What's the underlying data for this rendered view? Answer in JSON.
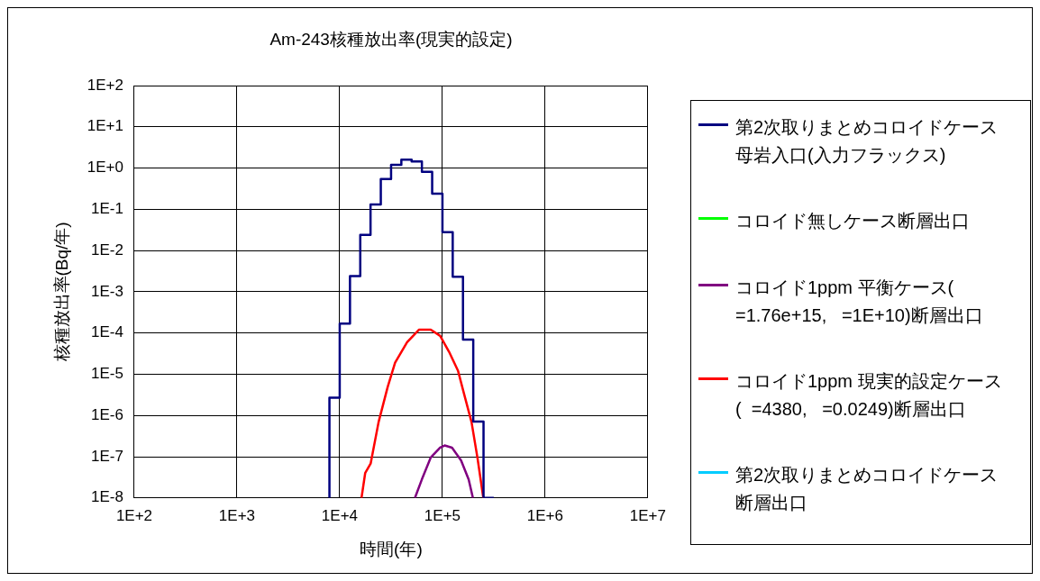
{
  "chart_data": {
    "type": "line",
    "title": "Am-243核種放出率(現実的設定)",
    "xlabel": "時間(年)",
    "ylabel": "核種放出率(Bq/年)",
    "log": "xy",
    "grid": true,
    "legend": "right",
    "marker": "none",
    "line_style": "solid",
    "xlim": [
      100,
      10000000
    ],
    "xticks": [
      {
        "value": 100,
        "label": "1E+2"
      },
      {
        "value": 1000,
        "label": "1E+3"
      },
      {
        "value": 10000,
        "label": "1E+4"
      },
      {
        "value": 100000,
        "label": "1E+5"
      },
      {
        "value": 1000000,
        "label": "1E+6"
      },
      {
        "value": 10000000,
        "label": "1E+7"
      }
    ],
    "ylim": [
      1e-08,
      100
    ],
    "yticks": [
      {
        "value": 1e-08,
        "label": "1E-8"
      },
      {
        "value": 1e-07,
        "label": "1E-7"
      },
      {
        "value": 1e-06,
        "label": "1E-6"
      },
      {
        "value": 1e-05,
        "label": "1E-5"
      },
      {
        "value": 0.0001,
        "label": "1E-4"
      },
      {
        "value": 0.001,
        "label": "1E-3"
      },
      {
        "value": 0.01,
        "label": "1E-2"
      },
      {
        "value": 0.1,
        "label": "1E-1"
      },
      {
        "value": 1,
        "label": "1E+0"
      },
      {
        "value": 10,
        "label": "1E+1"
      },
      {
        "value": 100,
        "label": "1E+2"
      }
    ],
    "series": [
      {
        "name": "第2次取りまとめコロイドケース母岩入口(入力フラックス)",
        "color": "#000080",
        "type": "step",
        "x": [
          7943,
          7943,
          10000,
          12589,
          15849,
          19953,
          25119,
          31623,
          39811,
          50119,
          63096,
          79433,
          100000,
          125893,
          158489,
          199526,
          251189,
          316228
        ],
        "values": [
          1e-08,
          3.8e-08,
          2.7e-06,
          0.00017,
          0.0024,
          0.024,
          0.13,
          0.54,
          1.2,
          1.6,
          1.45,
          0.81,
          0.24,
          0.028,
          0.0023,
          6.9e-05,
          7.1e-07,
          1e-08
        ]
      },
      {
        "name": "コロイド無しケース断層出口",
        "color": "#00ff00",
        "type": "line"
      },
      {
        "name": "コロイド1ppm 平衡ケース(  =1.76e+15,   =1E+10)断層出口",
        "color": "#800080",
        "type": "line",
        "x": [
          54000,
          63000,
          77000,
          95000,
          105000,
          124000,
          152000,
          180000,
          198000
        ],
        "values": [
          1e-08,
          2.8e-08,
          9.6e-08,
          1.66e-07,
          1.87e-07,
          1.66e-07,
          8.1e-08,
          2.8e-08,
          1e-08
        ]
      },
      {
        "name": "コロイド1ppm 現実的設定ケース(  =4380,   =0.0249)断層出口",
        "color": "#ff0000",
        "type": "line",
        "x": [
          16300,
          17700,
          20000,
          23900,
          29300,
          34600,
          45300,
          59000,
          77000,
          95000,
          116000,
          142000,
          162000,
          192000,
          219000,
          250000
        ],
        "values": [
          1e-08,
          4e-08,
          6.8e-08,
          6.9e-07,
          4.9e-06,
          1.9e-05,
          6e-05,
          0.00012,
          0.00012,
          8.5e-05,
          3.5e-05,
          1.2e-05,
          3.4e-06,
          6.9e-07,
          9.6e-08,
          1e-08
        ]
      },
      {
        "name": "第2次取りまとめコロイドケース断層出口",
        "color": "#00ccff",
        "type": "line"
      }
    ]
  }
}
